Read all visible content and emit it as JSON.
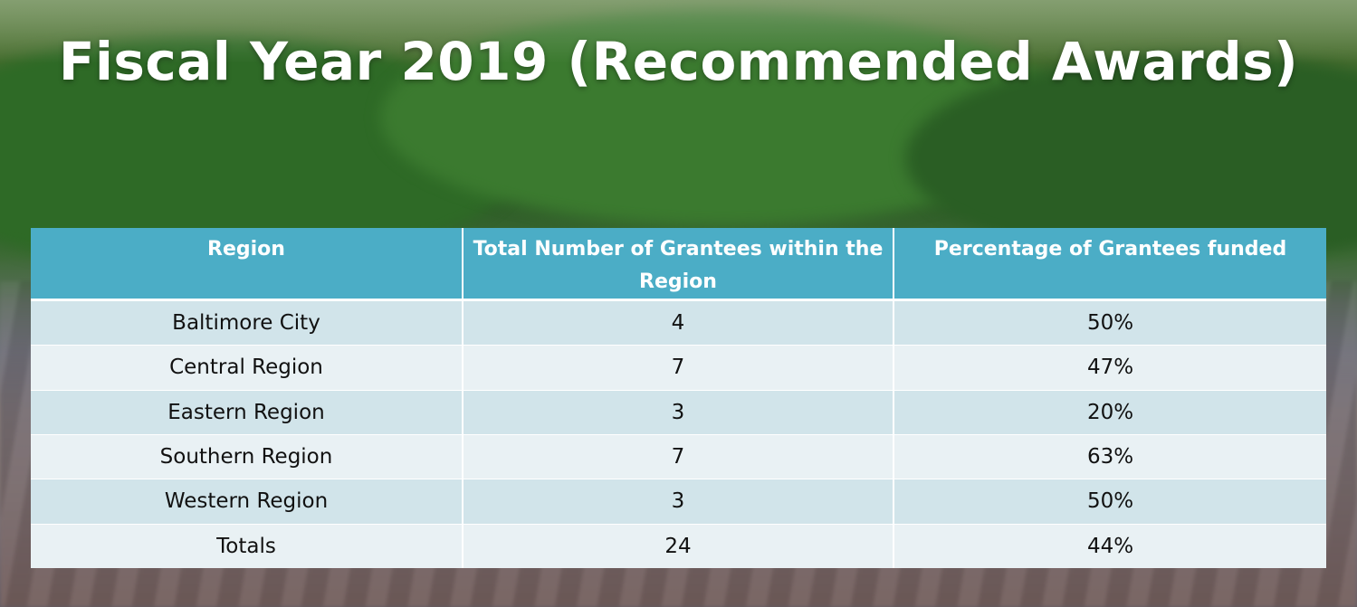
{
  "title": "Fiscal Year 2019 (Recommended Awards)",
  "table": {
    "headers": [
      "Region",
      "Total Number of Grantees within the Region",
      "Percentage of Grantees funded"
    ],
    "rows": [
      [
        "Baltimore City",
        "4",
        "50%"
      ],
      [
        "Central Region",
        "7",
        "47%"
      ],
      [
        "Eastern Region",
        "3",
        "20%"
      ],
      [
        "Southern Region",
        "7",
        "63%"
      ],
      [
        "Western Region",
        "3",
        "50%"
      ],
      [
        "Totals",
        "24",
        "44%"
      ]
    ]
  },
  "colors": {
    "header_bg": "#4badc6",
    "row_odd": "#d1e4ea",
    "row_even": "#e9f1f4",
    "title_text": "#ffffff"
  }
}
